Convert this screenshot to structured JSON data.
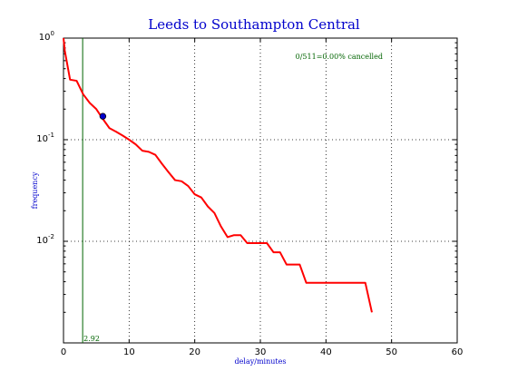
{
  "chart_data": {
    "type": "line",
    "title": "Leeds to Southampton Central",
    "xlabel": "delay/minutes",
    "ylabel": "frequency",
    "xlim": [
      0,
      60
    ],
    "ylim": [
      0.001,
      1
    ],
    "yscale": "log",
    "grid": true,
    "x_ticks": [
      {
        "value": 0,
        "label": "0"
      },
      {
        "value": 10,
        "label": "10"
      },
      {
        "value": 20,
        "label": "20"
      },
      {
        "value": 30,
        "label": "30"
      },
      {
        "value": 40,
        "label": "40"
      },
      {
        "value": 50,
        "label": "50"
      },
      {
        "value": 60,
        "label": "60"
      }
    ],
    "y_ticks": [
      {
        "value": 0.01,
        "base": "10",
        "exp": "-2"
      },
      {
        "value": 0.1,
        "base": "10",
        "exp": "-1"
      },
      {
        "value": 1,
        "base": "10",
        "exp": "0"
      }
    ],
    "series": [
      {
        "color": "#ff0000",
        "x": [
          0,
          0.2,
          1,
          2,
          3,
          4,
          5,
          6,
          7,
          8,
          9,
          10,
          11,
          12,
          13,
          14,
          15,
          16,
          17,
          18,
          19,
          20,
          21,
          22,
          23,
          24,
          25,
          26,
          27,
          28,
          29,
          30,
          31,
          32,
          33,
          34,
          35,
          36,
          37,
          38,
          39,
          40,
          41,
          42,
          43,
          44,
          45,
          46,
          47
        ],
        "y": [
          1,
          0.75,
          0.39,
          0.38,
          0.28,
          0.23,
          0.2,
          0.16,
          0.13,
          0.12,
          0.11,
          0.1,
          0.09,
          0.078,
          0.076,
          0.071,
          0.058,
          0.048,
          0.04,
          0.039,
          0.035,
          0.029,
          0.027,
          0.022,
          0.019,
          0.014,
          0.011,
          0.0115,
          0.0115,
          0.0096,
          0.0096,
          0.0096,
          0.0096,
          0.0078,
          0.0078,
          0.0059,
          0.0059,
          0.0059,
          0.0039,
          0.0039,
          0.0039,
          0.0039,
          0.0039,
          0.0039,
          0.0039,
          0.0039,
          0.0039,
          0.0039,
          0.002
        ]
      }
    ],
    "marker": {
      "x": 6,
      "y": 0.17,
      "color": "#0000cc"
    },
    "vline": {
      "x": 2.92,
      "label": "2.92",
      "color": "#006400"
    },
    "annotation": {
      "text": "0/511=0.00% cancelled",
      "x": 42,
      "y": 0.66,
      "color": "#006400"
    }
  }
}
